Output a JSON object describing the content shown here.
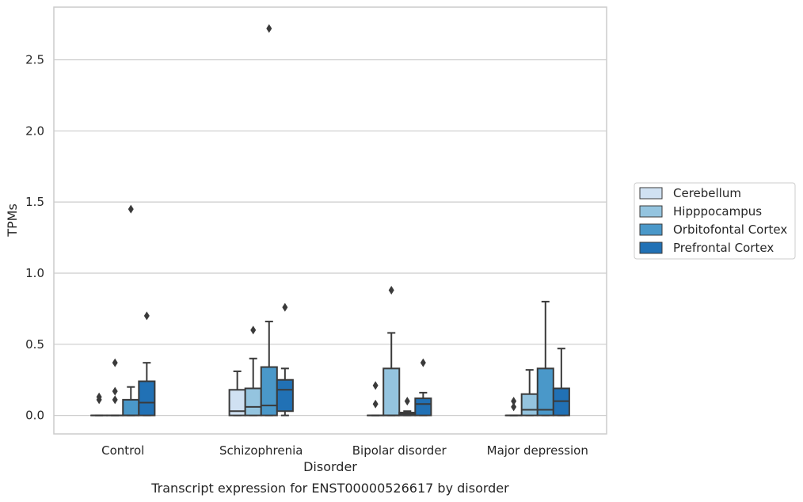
{
  "chart_data": {
    "type": "boxplot",
    "title": "Transcript expression for ENST00000526617 by disorder",
    "xlabel": "Disorder",
    "ylabel": "TPMs",
    "ylim": [
      -0.13,
      2.87
    ],
    "yticks": [
      "0.0",
      "0.5",
      "1.0",
      "1.5",
      "2.0",
      "2.5"
    ],
    "ytick_values": [
      0,
      0.5,
      1.0,
      1.5,
      2.0,
      2.5
    ],
    "grid": "horizontal",
    "legend_position": "right",
    "categories": [
      "Control",
      "Schizophrenia",
      "Bipolar disorder",
      "Major depression"
    ],
    "series": [
      {
        "name": "Cerebellum",
        "color": "#d0e1f2",
        "boxes": [
          {
            "q1": 0,
            "median": 0,
            "q3": 0,
            "whislo": 0,
            "whishi": 0,
            "fliers": [
              0.11,
              0.13
            ]
          },
          {
            "q1": 0,
            "median": 0.03,
            "q3": 0.18,
            "whislo": 0,
            "whishi": 0.31,
            "fliers": []
          },
          {
            "q1": 0,
            "median": 0,
            "q3": 0,
            "whislo": 0,
            "whishi": 0,
            "fliers": [
              0.08,
              0.21
            ]
          },
          {
            "q1": 0,
            "median": 0,
            "q3": 0,
            "whislo": 0,
            "whishi": 0,
            "fliers": [
              0.06,
              0.1
            ]
          }
        ]
      },
      {
        "name": "Hipppocampus",
        "color": "#94c4df",
        "boxes": [
          {
            "q1": 0,
            "median": 0,
            "q3": 0,
            "whislo": 0,
            "whishi": 0,
            "fliers": [
              0.11,
              0.17,
              0.37
            ]
          },
          {
            "q1": 0,
            "median": 0.06,
            "q3": 0.19,
            "whislo": 0,
            "whishi": 0.4,
            "fliers": [
              0.6
            ]
          },
          {
            "q1": 0,
            "median": 0,
            "q3": 0.33,
            "whislo": 0,
            "whishi": 0.58,
            "fliers": [
              0.88
            ]
          },
          {
            "q1": 0,
            "median": 0.04,
            "q3": 0.15,
            "whislo": 0,
            "whishi": 0.32,
            "fliers": []
          }
        ]
      },
      {
        "name": "Orbitofontal Cortex",
        "color": "#4a98c9",
        "boxes": [
          {
            "q1": 0,
            "median": 0,
            "q3": 0.11,
            "whislo": 0,
            "whishi": 0.2,
            "fliers": [
              1.45
            ]
          },
          {
            "q1": 0,
            "median": 0.07,
            "q3": 0.34,
            "whislo": 0,
            "whishi": 0.66,
            "fliers": [
              2.72
            ]
          },
          {
            "q1": 0,
            "median": 0.01,
            "q3": 0.02,
            "whislo": 0,
            "whishi": 0.03,
            "fliers": [
              0.1
            ]
          },
          {
            "q1": 0,
            "median": 0.04,
            "q3": 0.33,
            "whislo": 0,
            "whishi": 0.8,
            "fliers": []
          }
        ]
      },
      {
        "name": "Prefrontal Cortex",
        "color": "#2171b5",
        "boxes": [
          {
            "q1": 0,
            "median": 0.09,
            "q3": 0.24,
            "whislo": 0,
            "whishi": 0.37,
            "fliers": [
              0.7
            ]
          },
          {
            "q1": 0.03,
            "median": 0.18,
            "q3": 0.25,
            "whislo": 0,
            "whishi": 0.33,
            "fliers": [
              0.76
            ]
          },
          {
            "q1": 0,
            "median": 0.08,
            "q3": 0.12,
            "whislo": 0,
            "whishi": 0.16,
            "fliers": [
              0.37
            ]
          },
          {
            "q1": 0,
            "median": 0.1,
            "q3": 0.19,
            "whislo": 0,
            "whishi": 0.47,
            "fliers": []
          }
        ]
      }
    ]
  }
}
